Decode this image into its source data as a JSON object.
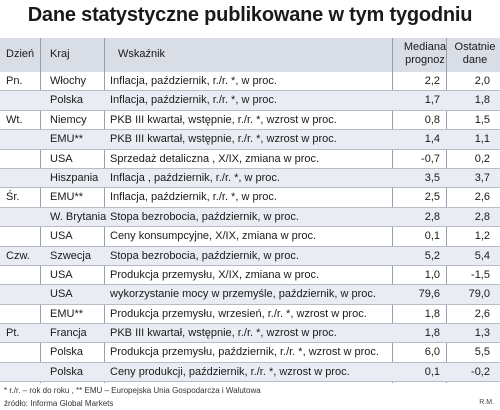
{
  "title": "Dane statystyczne publikowane w tym tygodniu",
  "headers": {
    "day": "Dzień",
    "country": "Kraj",
    "indicator": "Wskaźnik",
    "median_line1": "Mediana",
    "median_line2": "prognoz",
    "last_line1": "Ostatnie",
    "last_line2": "dane"
  },
  "rows": [
    {
      "day": "Pn.",
      "country": "Włochy",
      "indicator": "Inflacja, październik, r./r. *, w proc.",
      "median": "2,2",
      "last": "2,0"
    },
    {
      "day": "",
      "country": "Polska",
      "indicator": "Inflacja, październik, r./r. *, w proc.",
      "median": "1,7",
      "last": "1,8"
    },
    {
      "day": "Wt.",
      "country": "Niemcy",
      "indicator": "PKB III kwartał, wstępnie, r./r. *, wzrost w proc.",
      "median": "0,8",
      "last": "1,5"
    },
    {
      "day": "",
      "country": "EMU**",
      "indicator": "PKB III kwartał, wstępnie, r./r. *, wzrost w proc.",
      "median": "1,4",
      "last": "1,1"
    },
    {
      "day": "",
      "country": "USA",
      "indicator": "Sprzedaż detaliczna , X/IX, zmiana w proc.",
      "median": "-0,7",
      "last": "0,2"
    },
    {
      "day": "",
      "country": "Hiszpania",
      "indicator": "Inflacja , październik, r./r. *, w proc.",
      "median": "3,5",
      "last": "3,7"
    },
    {
      "day": "Śr.",
      "country": "EMU**",
      "indicator": "Inflacja, październik, r./r. *, w proc.",
      "median": "2,5",
      "last": "2,6"
    },
    {
      "day": "",
      "country": "W. Brytania",
      "indicator": "Stopa bezrobocia, październik, w proc.",
      "median": "2,8",
      "last": "2,8"
    },
    {
      "day": "",
      "country": "USA",
      "indicator": "Ceny konsumpcyjne, X/IX, zmiana w proc.",
      "median": "0,1",
      "last": "1,2"
    },
    {
      "day": "Czw.",
      "country": "Szwecja",
      "indicator": "Stopa bezrobocia, październik, w proc.",
      "median": "5,2",
      "last": "5,4"
    },
    {
      "day": "",
      "country": "USA",
      "indicator": "Produkcja przemysłu, X/IX, zmiana w proc.",
      "median": "1,0",
      "last": "-1,5"
    },
    {
      "day": "",
      "country": "USA",
      "indicator": "wykorzystanie mocy w przemyśle, październik, w proc.",
      "median": "79,6",
      "last": "79,0"
    },
    {
      "day": "",
      "country": "EMU**",
      "indicator": "Produkcja przemysłu, wrzesień, r./r. *, wzrost w proc.",
      "median": "1,8",
      "last": "2,6"
    },
    {
      "day": "Pt.",
      "country": "Francja",
      "indicator": "PKB III kwartał, wstępnie, r./r. *, wzrost w proc.",
      "median": "1,8",
      "last": "1,3"
    },
    {
      "day": "",
      "country": "Polska",
      "indicator": "Produkcja przemysłu, październik, r./r. *, wzrost w proc.",
      "median": "6,0",
      "last": "5,5"
    },
    {
      "day": "",
      "country": "Polska",
      "indicator": "Ceny produkcji, październik, r./r. *, wzrost w proc.",
      "median": "0,1",
      "last": "-0,2"
    }
  ],
  "footnote": "* r./r. – rok do roku , ** EMU – Europejska Unia Gospodarcza i Walutowa",
  "source": "źródło: Informa Global Markets",
  "initials": "R.M."
}
